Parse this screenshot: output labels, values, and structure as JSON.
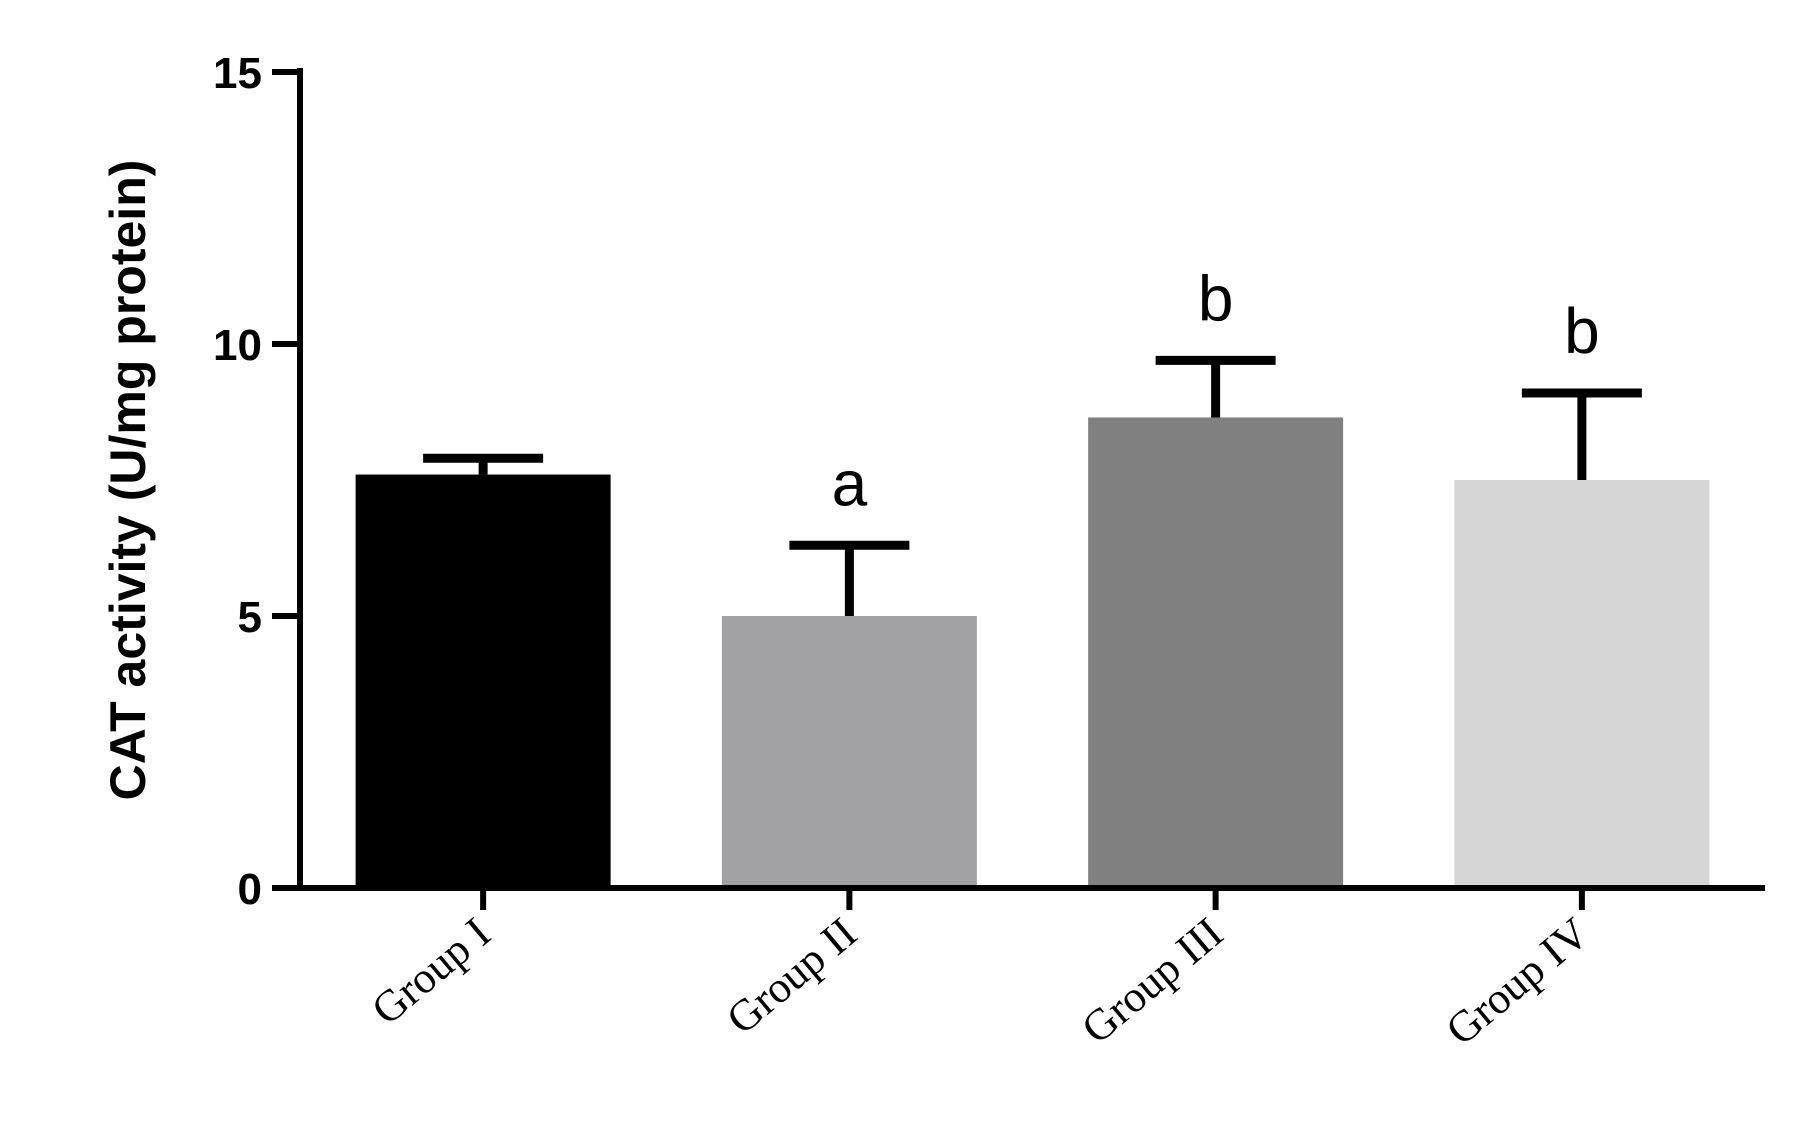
{
  "chart_data": {
    "type": "bar",
    "title": "",
    "xlabel": "",
    "ylabel": "CAT activity (U/mg protein)",
    "ylim": [
      0,
      15
    ],
    "yticks": [
      "0",
      "5",
      "10",
      "15"
    ],
    "categories": [
      "Group I",
      "Group II",
      "Group III",
      "Group IV"
    ],
    "values": [
      7.6,
      5.0,
      8.65,
      7.5
    ],
    "errors": [
      0.3,
      1.3,
      1.05,
      1.6
    ],
    "annotations": [
      "",
      "a",
      "b",
      "b"
    ],
    "colors": [
      "#000000",
      "#a2a2a6",
      "#808080",
      "#d6d6d6"
    ],
    "grid": false
  }
}
